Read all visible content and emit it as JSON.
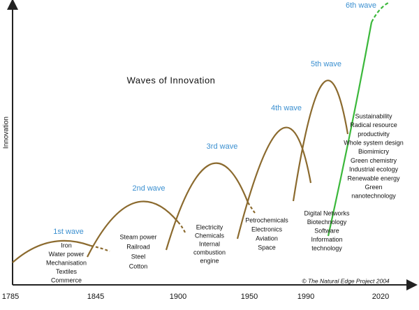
{
  "title": "Waves of Innovation",
  "y_axis_label": "Innovation",
  "x_axis_labels": [
    "1785",
    "1845",
    "1900",
    "1950",
    "1990",
    "2020"
  ],
  "waves": [
    {
      "label": "1st wave",
      "items": [
        "Iron",
        "Water power",
        "Mechanisation",
        "Textiles",
        "Commerce"
      ]
    },
    {
      "label": "2nd wave",
      "items": [
        "Steam power",
        "Railroad",
        "Steel",
        "Cotton"
      ]
    },
    {
      "label": "3rd wave",
      "items": [
        "Electricity",
        "Chemicals",
        "Internal",
        "combustion",
        "engine"
      ]
    },
    {
      "label": "4th wave",
      "items": [
        "Petrochemicals",
        "Electronics",
        "Aviation",
        "Space"
      ]
    },
    {
      "label": "5th wave",
      "items": [
        "Digital Networks",
        "Biotechnology",
        "Software",
        "Information",
        "technology"
      ]
    },
    {
      "label": "6th wave",
      "items": [
        "Sustainability",
        "Radical resource",
        "productivity",
        "Whole system design",
        "Biomimicry",
        "Green chemistry",
        "Industrial ecology",
        "Renewable energy",
        "Green",
        "nanotechnology"
      ]
    }
  ],
  "credit": "© The Natural Edge Project 2004"
}
